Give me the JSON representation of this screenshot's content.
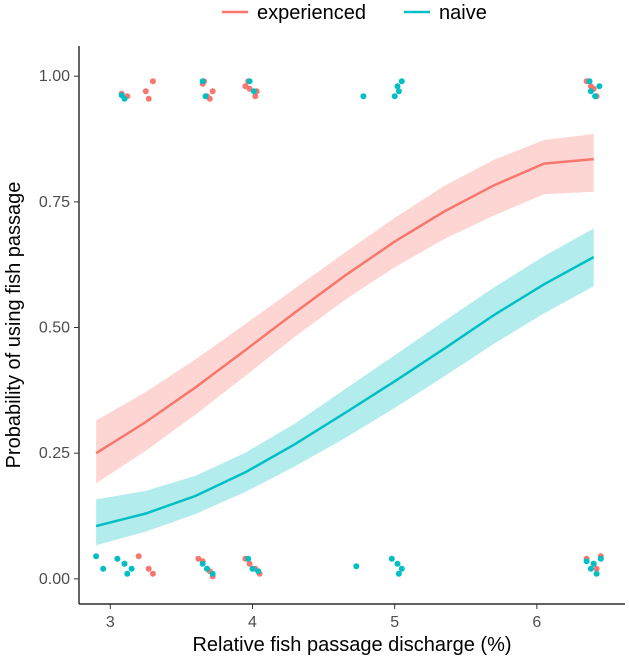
{
  "chart_data": {
    "type": "line",
    "title": "",
    "xlabel": "Relative fish passage discharge (%)",
    "ylabel": "Probability of using fish passage",
    "xlim": [
      2.78,
      6.62
    ],
    "ylim": [
      -0.05,
      1.06
    ],
    "x_ticks": [
      3,
      4,
      5,
      6
    ],
    "x_tick_labels": [
      "3",
      "4",
      "5",
      "6"
    ],
    "y_ticks": [
      0.0,
      0.25,
      0.5,
      0.75,
      1.0
    ],
    "y_tick_labels": [
      "0.00",
      "0.25",
      "0.50",
      "0.75",
      "1.00"
    ],
    "legend": {
      "position": "top",
      "entries": [
        {
          "name": "experienced",
          "color": "#F8766D"
        },
        {
          "name": "naive",
          "color": "#00BFC4"
        }
      ]
    },
    "series": [
      {
        "name": "experienced",
        "color": "#F8766D",
        "ribbon_color": "#F8766D",
        "x": [
          2.9,
          3.25,
          3.6,
          3.95,
          4.3,
          4.65,
          5.0,
          5.35,
          5.7,
          6.05,
          6.4
        ],
        "fit": [
          0.25,
          0.312,
          0.381,
          0.455,
          0.53,
          0.603,
          0.671,
          0.731,
          0.783,
          0.826,
          0.835
        ],
        "lower": [
          0.19,
          0.255,
          0.327,
          0.404,
          0.482,
          0.555,
          0.62,
          0.676,
          0.723,
          0.765,
          0.77
        ],
        "upper": [
          0.315,
          0.372,
          0.437,
          0.507,
          0.578,
          0.649,
          0.718,
          0.782,
          0.834,
          0.873,
          0.885
        ],
        "points": {
          "x": [
            3.08,
            3.12,
            3.25,
            3.3,
            3.27,
            3.65,
            3.68,
            3.72,
            3.7,
            3.66,
            3.95,
            3.98,
            4.02,
            3.97,
            4.03,
            6.35,
            6.38,
            6.42,
            6.4,
            3.05,
            3.1,
            3.2,
            3.27,
            3.3,
            3.62,
            3.65,
            3.68,
            3.7,
            3.72,
            3.95,
            3.98,
            4.02,
            4.05,
            6.35,
            6.4,
            6.42,
            6.45
          ],
          "y": [
            0.965,
            0.96,
            0.97,
            0.99,
            0.955,
            0.985,
            0.96,
            0.97,
            0.955,
            0.99,
            0.98,
            0.975,
            0.96,
            0.99,
            0.97,
            0.99,
            0.98,
            0.96,
            0.975,
            0.04,
            0.03,
            0.045,
            0.02,
            0.01,
            0.04,
            0.035,
            0.02,
            0.015,
            0.005,
            0.04,
            0.03,
            0.02,
            0.01,
            0.04,
            0.03,
            0.02,
            0.045
          ]
        }
      },
      {
        "name": "naive",
        "color": "#00BFC4",
        "ribbon_color": "#00BFC4",
        "x": [
          2.9,
          3.25,
          3.6,
          3.95,
          4.3,
          4.65,
          5.0,
          5.35,
          5.7,
          6.05,
          6.4
        ],
        "fit": [
          0.105,
          0.13,
          0.165,
          0.212,
          0.268,
          0.33,
          0.393,
          0.458,
          0.525,
          0.586,
          0.64
        ],
        "lower": [
          0.067,
          0.094,
          0.129,
          0.173,
          0.224,
          0.28,
          0.34,
          0.403,
          0.468,
          0.528,
          0.582
        ],
        "upper": [
          0.158,
          0.175,
          0.205,
          0.251,
          0.309,
          0.377,
          0.445,
          0.513,
          0.58,
          0.642,
          0.697
        ],
        "points": {
          "x": [
            3.08,
            3.1,
            3.65,
            3.67,
            3.98,
            4.01,
            4.78,
            5.0,
            5.02,
            5.05,
            5.03,
            6.37,
            6.41,
            6.44,
            6.38,
            2.9,
            2.95,
            3.05,
            3.1,
            3.12,
            3.15,
            3.65,
            3.68,
            3.72,
            3.97,
            4.0,
            4.04,
            4.73,
            4.98,
            5.02,
            5.05,
            5.03,
            6.35,
            6.38,
            6.42,
            6.45,
            6.4
          ],
          "y": [
            0.962,
            0.955,
            0.99,
            0.96,
            0.99,
            0.97,
            0.96,
            0.96,
            0.98,
            0.99,
            0.97,
            0.99,
            0.96,
            0.98,
            0.97,
            0.045,
            0.02,
            0.04,
            0.03,
            0.01,
            0.02,
            0.03,
            0.02,
            0.01,
            0.04,
            0.02,
            0.015,
            0.025,
            0.04,
            0.03,
            0.02,
            0.01,
            0.035,
            0.02,
            0.01,
            0.04,
            0.03
          ]
        }
      }
    ]
  }
}
